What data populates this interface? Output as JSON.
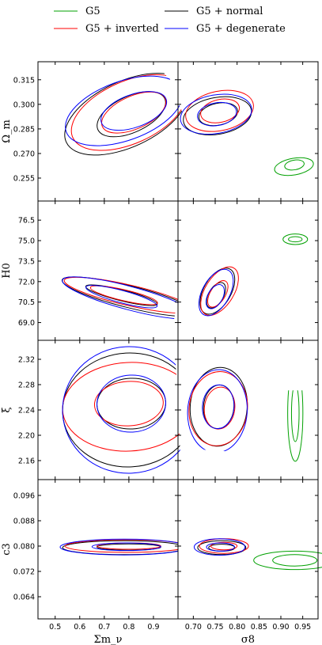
{
  "chart_data": {
    "type": "contour-corner",
    "legend": {
      "placement": "top",
      "entries": [
        {
          "label": "G5",
          "color": "#00a000"
        },
        {
          "label": "G5 + normal",
          "color": "#000000"
        },
        {
          "label": "G5 + inverted",
          "color": "#ff0000"
        },
        {
          "label": "G5 + degenerate",
          "color": "#0000ff"
        }
      ]
    },
    "columns": [
      {
        "label": "Σm_ν",
        "ticks": [
          0.5,
          0.6,
          0.7,
          0.8,
          0.9
        ],
        "tick_labels": [
          "0.5",
          "0.6",
          "0.7",
          "0.8",
          "0.9"
        ],
        "range": [
          0.43,
          1.0
        ]
      },
      {
        "label": "σ8",
        "ticks": [
          0.7,
          0.75,
          0.8,
          0.85,
          0.9,
          0.95
        ],
        "tick_labels": [
          "0.70",
          "0.75",
          "0.80",
          "0.85",
          "0.90",
          "0.95"
        ],
        "range": [
          0.665,
          0.985
        ]
      }
    ],
    "rows": [
      {
        "label": "Ω_m",
        "ticks": [
          0.255,
          0.27,
          0.285,
          0.3,
          0.315
        ],
        "tick_labels": [
          "0.255",
          "0.270",
          "0.285",
          "0.300",
          "0.315"
        ],
        "range": [
          0.241,
          0.326
        ]
      },
      {
        "label": "H0",
        "ticks": [
          69.0,
          70.5,
          72.0,
          73.5,
          75.0,
          76.5
        ],
        "tick_labels": [
          "69.0",
          "70.5",
          "72.0",
          "73.5",
          "75.0",
          "76.5"
        ],
        "range": [
          67.7,
          77.9
        ]
      },
      {
        "label": "ξ",
        "ticks": [
          2.16,
          2.2,
          2.24,
          2.28,
          2.32
        ],
        "tick_labels": [
          "2.16",
          "2.20",
          "2.24",
          "2.28",
          "2.32"
        ],
        "range": [
          2.13,
          2.35
        ]
      },
      {
        "label": "c3",
        "ticks": [
          0.064,
          0.072,
          0.08,
          0.088,
          0.096
        ],
        "tick_labels": [
          "0.064",
          "0.072",
          "0.080",
          "0.088",
          "0.096"
        ],
        "range": [
          0.057,
          0.101
        ]
      }
    ],
    "contours": [
      {
        "series": "G5 + normal",
        "color": "#000000",
        "row": 0,
        "col": 0,
        "cx": 0.79,
        "cy": 0.294,
        "rx": 0.27,
        "ry": 0.02,
        "angle": 25
      },
      {
        "series": "G5 + normal",
        "color": "#000000",
        "row": 0,
        "col": 0,
        "cx": 0.81,
        "cy": 0.294,
        "rx": 0.15,
        "ry": 0.011,
        "angle": 25
      },
      {
        "series": "G5 + inverted",
        "color": "#ff0000",
        "row": 0,
        "col": 0,
        "cx": 0.8,
        "cy": 0.295,
        "rx": 0.25,
        "ry": 0.019,
        "angle": 24
      },
      {
        "series": "G5 + inverted",
        "color": "#ff0000",
        "row": 0,
        "col": 0,
        "cx": 0.82,
        "cy": 0.295,
        "rx": 0.14,
        "ry": 0.01,
        "angle": 24
      },
      {
        "series": "G5 + degenerate",
        "color": "#0000ff",
        "row": 0,
        "col": 0,
        "cx": 0.78,
        "cy": 0.296,
        "rx": 0.25,
        "ry": 0.018,
        "angle": 20
      },
      {
        "series": "G5 + degenerate",
        "color": "#0000ff",
        "row": 0,
        "col": 0,
        "cx": 0.82,
        "cy": 0.296,
        "rx": 0.14,
        "ry": 0.01,
        "angle": 20
      },
      {
        "series": "G5 + normal",
        "color": "#000000",
        "row": 0,
        "col": 1,
        "cx": 0.755,
        "cy": 0.293,
        "rx": 0.042,
        "ry": 0.021,
        "angle": -80
      },
      {
        "series": "G5 + normal",
        "color": "#000000",
        "row": 0,
        "col": 1,
        "cx": 0.757,
        "cy": 0.294,
        "rx": 0.025,
        "ry": 0.012,
        "angle": -78
      },
      {
        "series": "G5 + inverted",
        "color": "#ff0000",
        "row": 0,
        "col": 1,
        "cx": 0.76,
        "cy": 0.296,
        "rx": 0.045,
        "ry": 0.021,
        "angle": -78
      },
      {
        "series": "G5 + inverted",
        "color": "#ff0000",
        "row": 0,
        "col": 1,
        "cx": 0.761,
        "cy": 0.296,
        "rx": 0.026,
        "ry": 0.012,
        "angle": -77
      },
      {
        "series": "G5 + degenerate",
        "color": "#0000ff",
        "row": 0,
        "col": 1,
        "cx": 0.752,
        "cy": 0.294,
        "rx": 0.044,
        "ry": 0.022,
        "angle": -80
      },
      {
        "series": "G5 + degenerate",
        "color": "#0000ff",
        "row": 0,
        "col": 1,
        "cx": 0.754,
        "cy": 0.294,
        "rx": 0.026,
        "ry": 0.012,
        "angle": -80
      },
      {
        "series": "G5",
        "color": "#00a000",
        "row": 0,
        "col": 1,
        "cx": 0.93,
        "cy": 0.262,
        "rx": 0.019,
        "ry": 0.012,
        "angle": -80
      },
      {
        "series": "G5",
        "color": "#00a000",
        "row": 0,
        "col": 1,
        "cx": 0.931,
        "cy": 0.263,
        "rx": 0.011,
        "ry": 0.006,
        "angle": -80
      },
      {
        "series": "G5 + normal",
        "color": "#000000",
        "row": 1,
        "col": 0,
        "cx": 0.8,
        "cy": 70.9,
        "rx": 0.28,
        "ry": 0.8,
        "angle": -14
      },
      {
        "series": "G5 + normal",
        "color": "#000000",
        "row": 1,
        "col": 0,
        "cx": 0.77,
        "cy": 71.0,
        "rx": 0.15,
        "ry": 0.4,
        "angle": -14
      },
      {
        "series": "G5 + inverted",
        "color": "#ff0000",
        "row": 1,
        "col": 0,
        "cx": 0.8,
        "cy": 71.0,
        "rx": 0.27,
        "ry": 0.75,
        "angle": -13
      },
      {
        "series": "G5 + inverted",
        "color": "#ff0000",
        "row": 1,
        "col": 0,
        "cx": 0.78,
        "cy": 71.0,
        "rx": 0.14,
        "ry": 0.4,
        "angle": -13
      },
      {
        "series": "G5 + degenerate",
        "color": "#0000ff",
        "row": 1,
        "col": 0,
        "cx": 0.8,
        "cy": 70.8,
        "rx": 0.28,
        "ry": 0.85,
        "angle": -15
      },
      {
        "series": "G5 + degenerate",
        "color": "#0000ff",
        "row": 1,
        "col": 0,
        "cx": 0.77,
        "cy": 70.9,
        "rx": 0.15,
        "ry": 0.45,
        "angle": -15
      },
      {
        "series": "G5 + normal",
        "color": "#000000",
        "row": 1,
        "col": 1,
        "cx": 0.755,
        "cy": 71.3,
        "rx": 0.058,
        "ry": 1.0,
        "angle": 60
      },
      {
        "series": "G5 + normal",
        "color": "#000000",
        "row": 1,
        "col": 1,
        "cx": 0.752,
        "cy": 71.0,
        "rx": 0.032,
        "ry": 0.55,
        "angle": 60
      },
      {
        "series": "G5 + inverted",
        "color": "#ff0000",
        "row": 1,
        "col": 1,
        "cx": 0.76,
        "cy": 71.3,
        "rx": 0.062,
        "ry": 1.05,
        "angle": 58
      },
      {
        "series": "G5 + inverted",
        "color": "#ff0000",
        "row": 1,
        "col": 1,
        "cx": 0.756,
        "cy": 71.1,
        "rx": 0.034,
        "ry": 0.55,
        "angle": 58
      },
      {
        "series": "G5 + degenerate",
        "color": "#0000ff",
        "row": 1,
        "col": 1,
        "cx": 0.752,
        "cy": 71.2,
        "rx": 0.058,
        "ry": 1.0,
        "angle": 61
      },
      {
        "series": "G5 + degenerate",
        "color": "#0000ff",
        "row": 1,
        "col": 1,
        "cx": 0.75,
        "cy": 70.9,
        "rx": 0.03,
        "ry": 0.55,
        "angle": 61
      },
      {
        "series": "G5",
        "color": "#00a000",
        "row": 1,
        "col": 1,
        "cx": 0.933,
        "cy": 75.1,
        "rx": 0.012,
        "ry": 0.9,
        "angle": 90
      },
      {
        "series": "G5",
        "color": "#00a000",
        "row": 1,
        "col": 1,
        "cx": 0.933,
        "cy": 75.1,
        "rx": 0.006,
        "ry": 0.5,
        "angle": 90
      },
      {
        "series": "G5 + normal",
        "color": "#000000",
        "row": 2,
        "col": 0,
        "cx": 0.8,
        "cy": 2.24,
        "rx": 0.27,
        "ry": 0.09,
        "angle": 3
      },
      {
        "series": "G5 + normal",
        "color": "#000000",
        "row": 2,
        "col": 0,
        "cx": 0.81,
        "cy": 2.25,
        "rx": 0.14,
        "ry": 0.04,
        "angle": 3
      },
      {
        "series": "G5 + inverted",
        "color": "#ff0000",
        "row": 2,
        "col": 0,
        "cx": 0.8,
        "cy": 2.245,
        "rx": 0.27,
        "ry": 0.07,
        "angle": 3
      },
      {
        "series": "G5 + inverted",
        "color": "#ff0000",
        "row": 2,
        "col": 0,
        "cx": 0.8,
        "cy": 2.25,
        "rx": 0.14,
        "ry": 0.035,
        "angle": 3
      },
      {
        "series": "G5 + degenerate",
        "color": "#0000ff",
        "row": 2,
        "col": 0,
        "cx": 0.8,
        "cy": 2.24,
        "rx": 0.27,
        "ry": 0.1,
        "angle": 3
      },
      {
        "series": "G5 + degenerate",
        "color": "#0000ff",
        "row": 2,
        "col": 0,
        "cx": 0.81,
        "cy": 2.25,
        "rx": 0.14,
        "ry": 0.045,
        "angle": 3
      },
      {
        "series": "G5 + normal",
        "color": "#000000",
        "row": 2,
        "col": 1,
        "cx": 0.758,
        "cy": 2.245,
        "rx": 0.09,
        "ry": 0.045,
        "angle": 85
      },
      {
        "series": "G5 + normal",
        "color": "#000000",
        "row": 2,
        "col": 1,
        "cx": 0.758,
        "cy": 2.245,
        "rx": 0.05,
        "ry": 0.024,
        "angle": 85
      },
      {
        "series": "G5 + inverted",
        "color": "#ff0000",
        "row": 2,
        "col": 1,
        "cx": 0.757,
        "cy": 2.242,
        "rx": 0.085,
        "ry": 0.046,
        "angle": 83
      },
      {
        "series": "G5 + inverted",
        "color": "#ff0000",
        "row": 2,
        "col": 1,
        "cx": 0.76,
        "cy": 2.243,
        "rx": 0.048,
        "ry": 0.024,
        "angle": 83
      },
      {
        "series": "G5 + degenerate",
        "color": "#0000ff",
        "row": 2,
        "col": 1,
        "cx": 0.755,
        "cy": 2.238,
        "rx": 0.095,
        "ry": 0.047,
        "angle": 86
      },
      {
        "series": "G5 + degenerate",
        "color": "#0000ff",
        "row": 2,
        "col": 1,
        "cx": 0.757,
        "cy": 2.245,
        "rx": 0.05,
        "ry": 0.025,
        "angle": 86
      },
      {
        "series": "G5",
        "color": "#00a000",
        "row": 2,
        "col": 1,
        "cx": 0.933,
        "cy": 2.235,
        "rx": 0.11,
        "ry": 0.012,
        "angle": 90
      },
      {
        "series": "G5",
        "color": "#00a000",
        "row": 2,
        "col": 1,
        "cx": 0.933,
        "cy": 2.235,
        "rx": 0.065,
        "ry": 0.006,
        "angle": 90
      },
      {
        "series": "G5 + normal",
        "color": "#000000",
        "row": 3,
        "col": 0,
        "cx": 0.78,
        "cy": 0.0795,
        "rx": 0.25,
        "ry": 0.0022,
        "angle": 0
      },
      {
        "series": "G5 + normal",
        "color": "#000000",
        "row": 3,
        "col": 0,
        "cx": 0.8,
        "cy": 0.0797,
        "rx": 0.13,
        "ry": 0.001,
        "angle": 0
      },
      {
        "series": "G5 + inverted",
        "color": "#ff0000",
        "row": 3,
        "col": 0,
        "cx": 0.79,
        "cy": 0.08,
        "rx": 0.25,
        "ry": 0.002,
        "angle": 0
      },
      {
        "series": "G5 + inverted",
        "color": "#ff0000",
        "row": 3,
        "col": 0,
        "cx": 0.8,
        "cy": 0.08,
        "rx": 0.13,
        "ry": 0.001,
        "angle": 0
      },
      {
        "series": "G5 + degenerate",
        "color": "#0000ff",
        "row": 3,
        "col": 0,
        "cx": 0.78,
        "cy": 0.0797,
        "rx": 0.26,
        "ry": 0.0025,
        "angle": 0
      },
      {
        "series": "G5 + degenerate",
        "color": "#0000ff",
        "row": 3,
        "col": 0,
        "cx": 0.79,
        "cy": 0.0798,
        "rx": 0.14,
        "ry": 0.0012,
        "angle": 0
      },
      {
        "series": "G5 + normal",
        "color": "#000000",
        "row": 3,
        "col": 1,
        "cx": 0.765,
        "cy": 0.0795,
        "rx": 0.055,
        "ry": 0.0022,
        "angle": 0
      },
      {
        "series": "G5 + normal",
        "color": "#000000",
        "row": 3,
        "col": 1,
        "cx": 0.765,
        "cy": 0.0795,
        "rx": 0.03,
        "ry": 0.0011,
        "angle": 0
      },
      {
        "series": "G5 + inverted",
        "color": "#ff0000",
        "row": 3,
        "col": 1,
        "cx": 0.77,
        "cy": 0.08,
        "rx": 0.056,
        "ry": 0.0023,
        "angle": 0
      },
      {
        "series": "G5 + inverted",
        "color": "#ff0000",
        "row": 3,
        "col": 1,
        "cx": 0.77,
        "cy": 0.08,
        "rx": 0.03,
        "ry": 0.0012,
        "angle": 0
      },
      {
        "series": "G5 + degenerate",
        "color": "#0000ff",
        "row": 3,
        "col": 1,
        "cx": 0.76,
        "cy": 0.0797,
        "rx": 0.058,
        "ry": 0.0026,
        "angle": 0
      },
      {
        "series": "G5 + degenerate",
        "color": "#0000ff",
        "row": 3,
        "col": 1,
        "cx": 0.762,
        "cy": 0.0797,
        "rx": 0.032,
        "ry": 0.0013,
        "angle": 0
      },
      {
        "series": "G5",
        "color": "#00a000",
        "row": 3,
        "col": 1,
        "cx": 0.932,
        "cy": 0.0755,
        "rx": 0.021,
        "ry": 0.013,
        "angle": 90
      },
      {
        "series": "G5",
        "color": "#00a000",
        "row": 3,
        "col": 1,
        "cx": 0.932,
        "cy": 0.0755,
        "rx": 0.013,
        "ry": 0.007,
        "angle": 90
      }
    ]
  }
}
